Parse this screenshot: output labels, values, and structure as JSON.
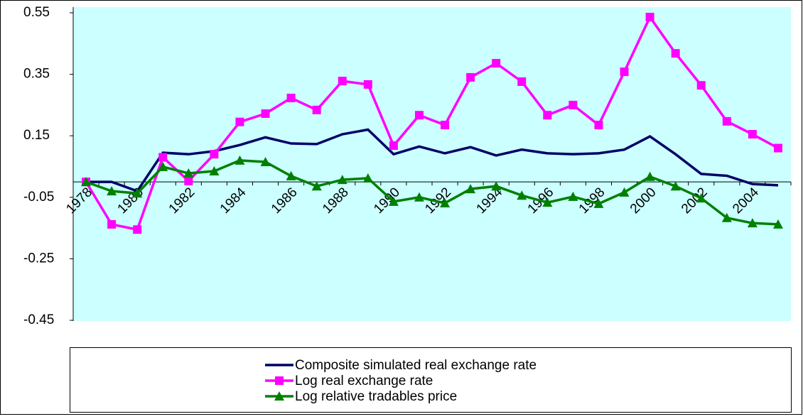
{
  "chart_data": {
    "type": "line",
    "categories": [
      "1978",
      null,
      "1980",
      null,
      "1982",
      null,
      "1984",
      null,
      "1986",
      null,
      "1988",
      null,
      "1990",
      null,
      "1992",
      null,
      "1994",
      null,
      "1996",
      null,
      "1998",
      null,
      "2000",
      null,
      "2002",
      null,
      "2004",
      null
    ],
    "series": [
      {
        "name": "Composite simulated real exchange rate",
        "color": "#000066",
        "marker": "none",
        "values": [
          0.0,
          0.0,
          -0.03,
          0.095,
          0.09,
          0.1,
          0.12,
          0.145,
          0.125,
          0.123,
          0.155,
          0.17,
          0.09,
          0.115,
          0.093,
          0.113,
          0.086,
          0.105,
          0.093,
          0.09,
          0.093,
          0.105,
          0.148,
          0.09,
          0.026,
          0.02,
          -0.007,
          -0.011
        ]
      },
      {
        "name": "Log real exchange rate",
        "color": "#ff00ff",
        "marker": "square",
        "values": [
          0.0,
          -0.138,
          -0.155,
          0.08,
          0.003,
          0.09,
          0.195,
          0.222,
          0.273,
          0.234,
          0.328,
          0.317,
          0.118,
          0.217,
          0.185,
          0.34,
          0.386,
          0.326,
          0.217,
          0.25,
          0.185,
          0.358,
          0.536,
          0.418,
          0.314,
          0.197,
          0.155,
          0.11
        ]
      },
      {
        "name": "Log relative tradables price",
        "color": "#008000",
        "marker": "triangle",
        "values": [
          0.0,
          -0.03,
          -0.037,
          0.049,
          0.028,
          0.035,
          0.07,
          0.065,
          0.019,
          -0.014,
          0.007,
          0.012,
          -0.064,
          -0.05,
          -0.069,
          -0.023,
          -0.014,
          -0.044,
          -0.067,
          -0.048,
          -0.071,
          -0.034,
          0.017,
          -0.014,
          -0.053,
          -0.117,
          -0.134,
          -0.138
        ]
      }
    ],
    "ylim": [
      -0.45,
      0.55
    ],
    "yticks": [
      0.55,
      0.35,
      0.15,
      -0.05,
      -0.25,
      -0.45
    ],
    "background": "#ccffff",
    "legend": "bottom"
  }
}
